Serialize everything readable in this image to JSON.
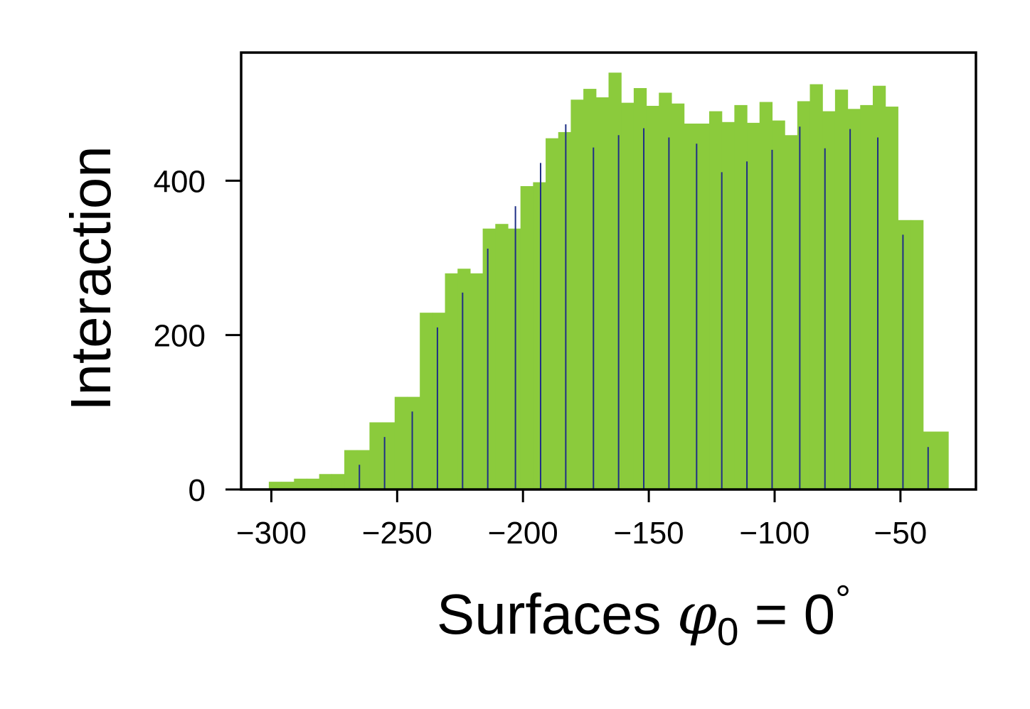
{
  "chart_data": {
    "type": "bar",
    "xlabel": "Surfaces",
    "xlabel_math": {
      "symbol": "φ",
      "subscript": "0",
      "equals": "=",
      "value": "0",
      "degree": "°"
    },
    "ylabel": "Interaction",
    "xlim": [
      -312,
      -20
    ],
    "ylim": [
      0,
      566
    ],
    "xticks": [
      -300,
      -250,
      -200,
      -150,
      -100,
      -50
    ],
    "xtick_labels": [
      "−300",
      "−250",
      "−200",
      "−150",
      "−100",
      "−50"
    ],
    "yticks": [
      0,
      200,
      400
    ],
    "ytick_labels": [
      "0",
      "200",
      "400"
    ],
    "grid": false,
    "colors": {
      "bars": "#8bcb3c",
      "lines": "#1f2f86"
    },
    "series": [
      {
        "kind": "histogram",
        "color": "#8bcb3c",
        "bins": [
          [
            -301,
            -296,
            10
          ],
          [
            -296,
            -291,
            10
          ],
          [
            -291,
            -286,
            14
          ],
          [
            -286,
            -281,
            14
          ],
          [
            -281,
            -276,
            20
          ],
          [
            -276,
            -271,
            20
          ],
          [
            -271,
            -266,
            51
          ],
          [
            -266,
            -261,
            51
          ],
          [
            -261,
            -256,
            87
          ],
          [
            -256,
            -251,
            87
          ],
          [
            -251,
            -246,
            120
          ],
          [
            -246,
            -241,
            120
          ],
          [
            -241,
            -236,
            229
          ],
          [
            -236,
            -231,
            229
          ],
          [
            -231,
            -226,
            280
          ],
          [
            -226,
            -221,
            286
          ],
          [
            -221,
            -216,
            280
          ],
          [
            -216,
            -211,
            338
          ],
          [
            -211,
            -206,
            344
          ],
          [
            -206,
            -201,
            338
          ],
          [
            -201,
            -196,
            393
          ],
          [
            -196,
            -191,
            398
          ],
          [
            -191,
            -186,
            455
          ],
          [
            -186,
            -181,
            463
          ],
          [
            -181,
            -176,
            505
          ],
          [
            -176,
            -171,
            519
          ],
          [
            -171,
            -166,
            508
          ],
          [
            -166,
            -161,
            540
          ],
          [
            -161,
            -156,
            501
          ],
          [
            -156,
            -151,
            520
          ],
          [
            -151,
            -146,
            497
          ],
          [
            -146,
            -141,
            514
          ],
          [
            -141,
            -136,
            500
          ],
          [
            -136,
            -131,
            474
          ],
          [
            -131,
            -126,
            474
          ],
          [
            -126,
            -121,
            490
          ],
          [
            -121,
            -116,
            476
          ],
          [
            -116,
            -111,
            498
          ],
          [
            -111,
            -106,
            475
          ],
          [
            -106,
            -101,
            502
          ],
          [
            -101,
            -96,
            478
          ],
          [
            -96,
            -91,
            459
          ],
          [
            -91,
            -86,
            503
          ],
          [
            -86,
            -81,
            525
          ],
          [
            -81,
            -76,
            490
          ],
          [
            -76,
            -71,
            518
          ],
          [
            -71,
            -66,
            493
          ],
          [
            -66,
            -61,
            498
          ],
          [
            -61,
            -56,
            523
          ],
          [
            -56,
            -51,
            496
          ],
          [
            -51,
            -46,
            349
          ],
          [
            -46,
            -41,
            349
          ],
          [
            -41,
            -36,
            75
          ],
          [
            -36,
            -31,
            75
          ]
        ]
      },
      {
        "kind": "stems",
        "color": "#1f2f86",
        "x": [
          -265,
          -255,
          -244,
          -234,
          -224,
          -214,
          -203,
          -193,
          -183,
          -172,
          -162,
          -152,
          -142,
          -131,
          -121,
          -111,
          -101,
          -90,
          -80,
          -70,
          -59,
          -49,
          -39
        ],
        "y": [
          32,
          68,
          101,
          210,
          255,
          312,
          367,
          423,
          473,
          443,
          459,
          468,
          456,
          448,
          411,
          425,
          440,
          470,
          442,
          467,
          456,
          330,
          55
        ]
      }
    ]
  }
}
